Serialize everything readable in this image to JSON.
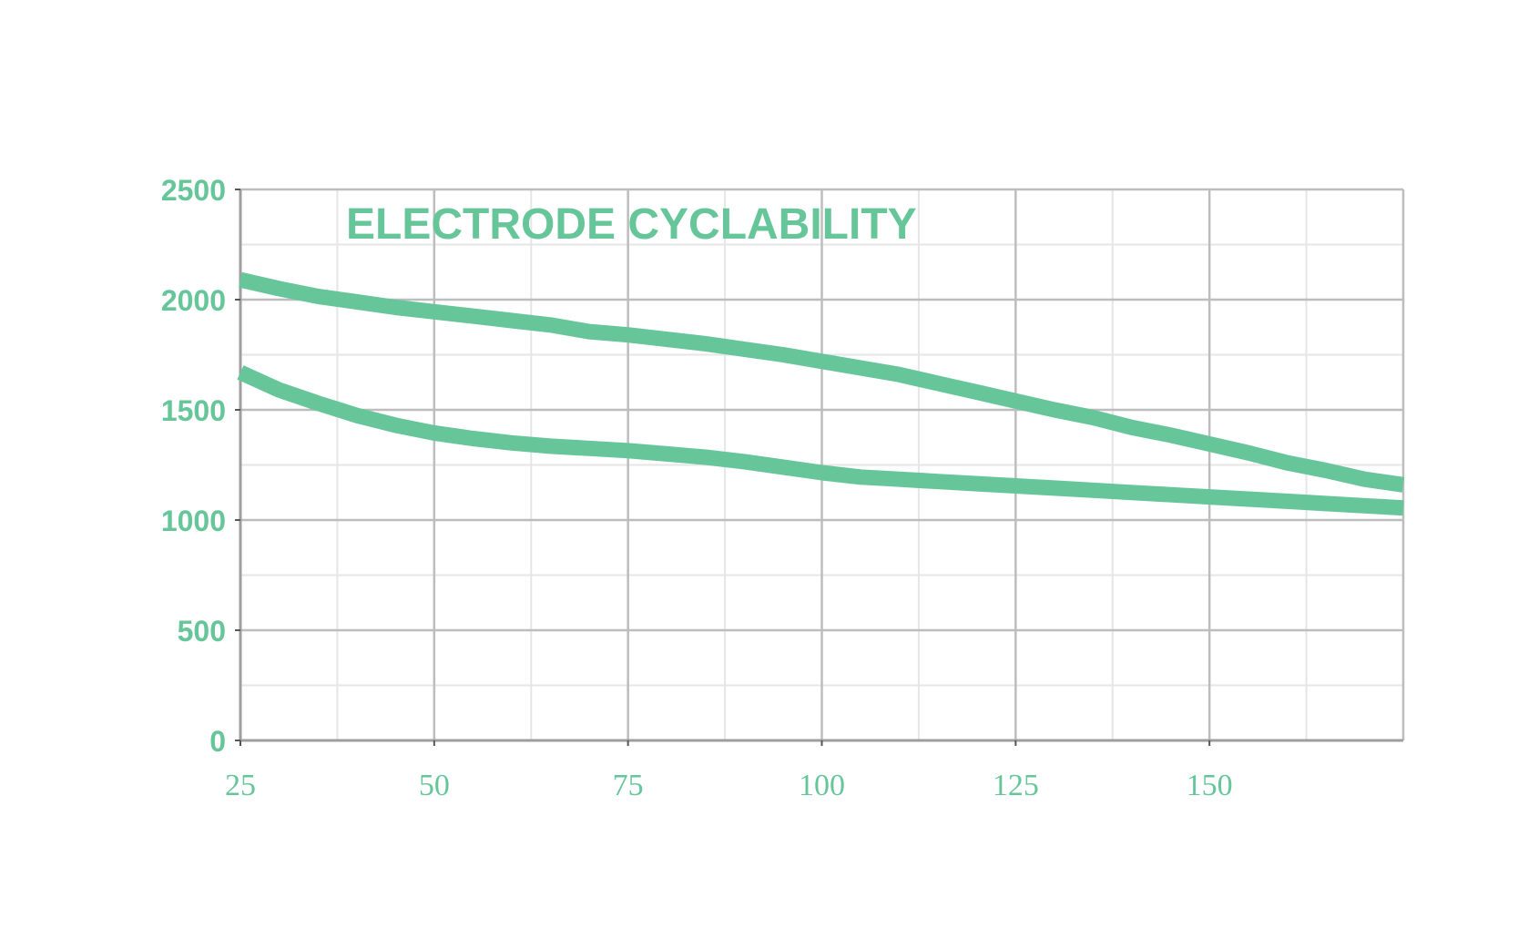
{
  "chart_data": {
    "type": "line",
    "title": "ELECTRODE CYCLABILITY",
    "xlabel": "",
    "ylabel": "",
    "xlim": [
      25,
      175
    ],
    "ylim": [
      0,
      2500
    ],
    "xticks": [
      25,
      50,
      75,
      100,
      125,
      150
    ],
    "xtick_labels": [
      "25",
      "50",
      "75",
      "100",
      "125",
      "150"
    ],
    "yticks": [
      0,
      500,
      1000,
      1500,
      2000,
      2500
    ],
    "ytick_labels": [
      "0",
      "500",
      "1000",
      "1500",
      "2000",
      "2500"
    ],
    "grid": true,
    "legend": "none",
    "colors": {
      "series": "#66c699",
      "text": "#66c699",
      "grid_major": "#bdbdbd",
      "grid_minor": "#e6e6e6"
    },
    "series": [
      {
        "x": [
          25,
          30,
          35,
          40,
          45,
          50,
          55,
          60,
          65,
          70,
          75,
          80,
          85,
          90,
          95,
          100,
          105,
          110,
          115,
          120,
          125,
          130,
          135,
          140,
          145,
          150,
          155,
          160,
          165,
          170,
          175
        ],
        "values": [
          2090,
          2050,
          2015,
          1990,
          1965,
          1945,
          1925,
          1905,
          1885,
          1855,
          1840,
          1820,
          1800,
          1775,
          1750,
          1720,
          1690,
          1660,
          1620,
          1580,
          1540,
          1500,
          1465,
          1420,
          1385,
          1345,
          1305,
          1260,
          1225,
          1185,
          1160
        ]
      },
      {
        "x": [
          25,
          30,
          35,
          40,
          45,
          50,
          55,
          60,
          65,
          70,
          75,
          80,
          85,
          90,
          95,
          100,
          105,
          110,
          115,
          120,
          125,
          130,
          135,
          140,
          145,
          150,
          155,
          160,
          165,
          170,
          175
        ],
        "values": [
          1670,
          1590,
          1530,
          1475,
          1430,
          1395,
          1370,
          1350,
          1335,
          1325,
          1315,
          1300,
          1285,
          1265,
          1240,
          1215,
          1195,
          1185,
          1175,
          1165,
          1155,
          1145,
          1135,
          1125,
          1115,
          1105,
          1095,
          1085,
          1075,
          1065,
          1055
        ]
      }
    ]
  }
}
